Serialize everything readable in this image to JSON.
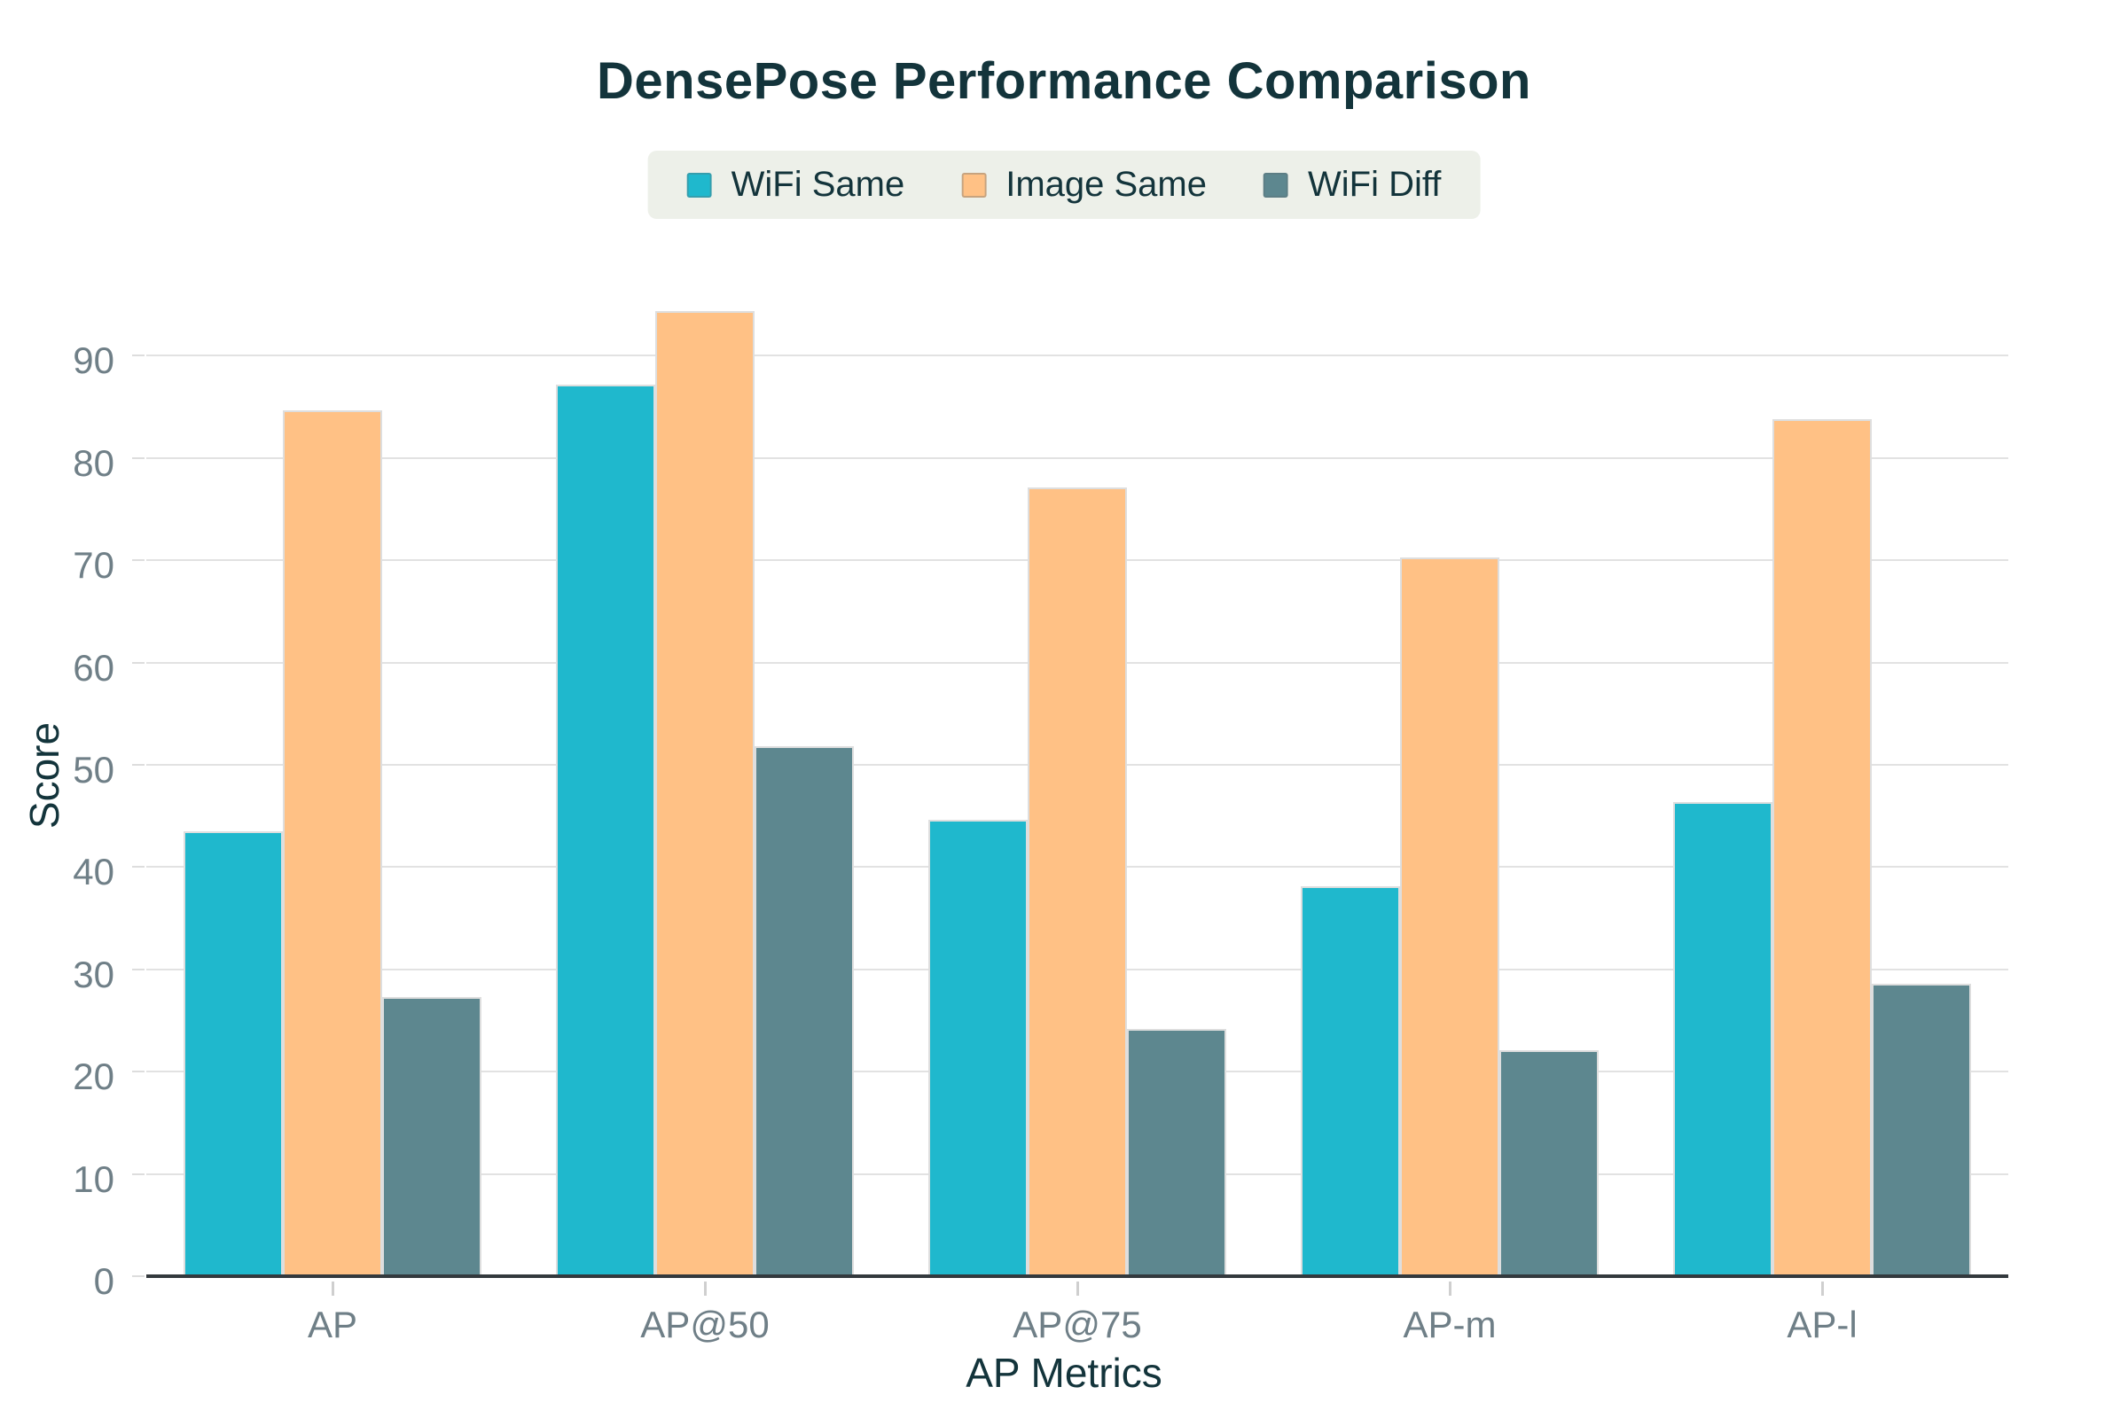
{
  "title": "DensePose Performance Comparison",
  "legend": {
    "items": [
      {
        "label": "WiFi Same",
        "color": "#1FB8CD"
      },
      {
        "label": "Image Same",
        "color": "#FFC185"
      },
      {
        "label": "WiFi Diff",
        "color": "#5D878F"
      }
    ]
  },
  "chart_data": {
    "type": "bar",
    "title": "DensePose Performance Comparison",
    "categories": [
      "AP",
      "AP@50",
      "AP@75",
      "AP-m",
      "AP-l"
    ],
    "series": [
      {
        "name": "WiFi Same",
        "color": "#1FB8CD",
        "values": [
          43.5,
          87.2,
          44.6,
          38.1,
          46.4
        ]
      },
      {
        "name": "Image Same",
        "color": "#FFC185",
        "values": [
          84.7,
          94.4,
          77.1,
          70.3,
          83.8
        ]
      },
      {
        "name": "WiFi Diff",
        "color": "#5D878F",
        "values": [
          27.3,
          51.8,
          24.2,
          22.1,
          28.6
        ]
      }
    ],
    "xlabel": "AP Metrics",
    "ylabel": "Score",
    "ylim": [
      0,
      95
    ],
    "yticks": [
      0,
      10,
      20,
      30,
      40,
      50,
      60,
      70,
      80,
      90
    ],
    "grid": true,
    "legend_position": "top-center"
  },
  "colors": {
    "accent_teal": "#1FB8CD",
    "accent_orange": "#FFC185",
    "accent_slate": "#5D878F",
    "text_dark": "#13343B",
    "tick_text": "#6F7F87",
    "gridline": "#E2E2E2",
    "legend_bg": "#EDF0E9",
    "axis_line": "#33393D",
    "bar_border": "#DEDEDE",
    "background": "#FFFFFF"
  }
}
